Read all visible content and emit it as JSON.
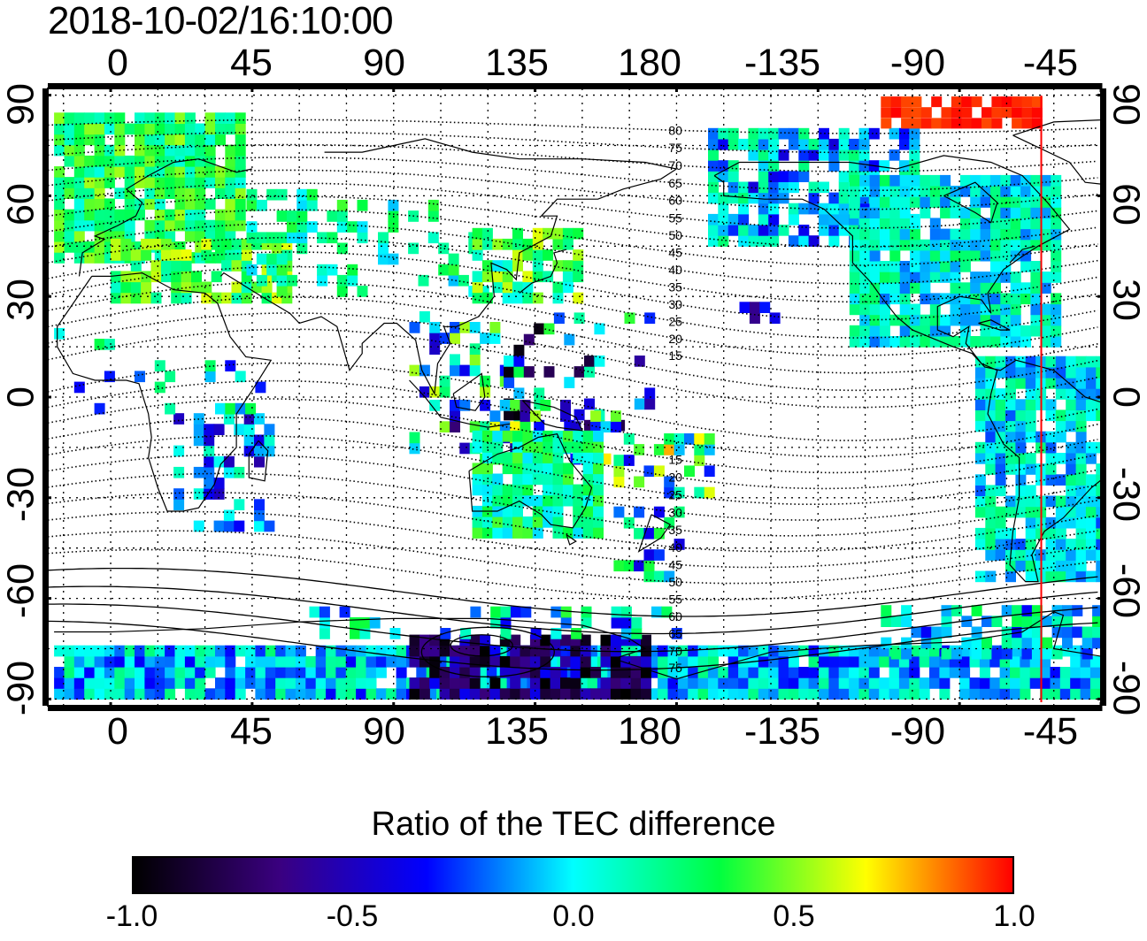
{
  "title": "2018-10-02/16:10:00",
  "axes": {
    "lon_ticks": [
      "0",
      "45",
      "90",
      "135",
      "180",
      "-135",
      "-90",
      "-45"
    ],
    "lat_ticks": [
      "90",
      "60",
      "30",
      "0",
      "-30",
      "-60",
      "-90"
    ],
    "lon_range": [
      -20,
      315
    ],
    "lat_range": [
      -92,
      92
    ]
  },
  "contour_labels": [
    "80",
    "75",
    "70",
    "65",
    "60",
    "55",
    "50",
    "45",
    "40",
    "35",
    "30",
    "25",
    "20",
    "15",
    "15",
    "20",
    "25",
    "30",
    "35",
    "40",
    "45",
    "50",
    "55",
    "60",
    "65",
    "70",
    "75"
  ],
  "marker_line_lon": -64,
  "colorbar": {
    "title": "Ratio of the TEC difference",
    "ticks": [
      "-1.0",
      "-0.5",
      "0.0",
      "0.5",
      "1.0"
    ],
    "range": [
      -1.0,
      1.0
    ],
    "colors": [
      "#000000",
      "#3a0080",
      "#0000ff",
      "#00ffff",
      "#00ff40",
      "#ffff00",
      "#ff0000"
    ]
  },
  "colors": {
    "marker_line": "#ff0000",
    "map_ink": "#000000",
    "background": "#ffffff"
  }
}
